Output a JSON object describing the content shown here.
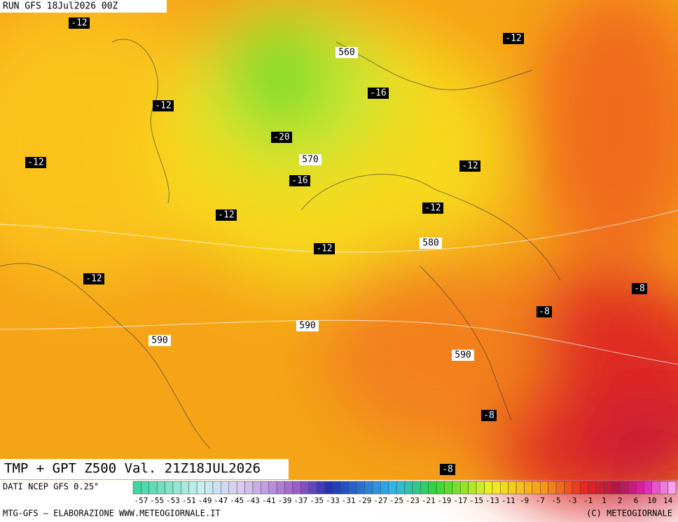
{
  "header": {
    "run": "RUN GFS 18Jul2026 00Z"
  },
  "map": {
    "temp_labels": [
      -12,
      -12,
      -16,
      -12,
      -20,
      -12,
      -16,
      -12,
      -12,
      -12,
      -12,
      -12,
      -8,
      -8,
      -8,
      -8
    ],
    "height_labels": [
      560,
      570,
      580,
      590,
      590,
      590
    ]
  },
  "footer": {
    "title": "TMP + GPT Z500 Val. 21Z18JUL2026",
    "source": "DATI NCEP GFS 0.25°",
    "credit": "MTG-GFS – ELABORAZIONE WWW.METEOGIORNALE.IT",
    "copyright": "(C) METEOGIORNALE"
  },
  "colorbar": {
    "labels": [
      -57,
      -55,
      -53,
      -51,
      -49,
      -47,
      -45,
      -43,
      -41,
      -39,
      -37,
      -35,
      -33,
      -31,
      -29,
      -27,
      -25,
      -23,
      -21,
      -19,
      -17,
      -15,
      -13,
      -11,
      -9,
      -7,
      -5,
      -3,
      -1,
      1,
      2,
      6,
      10,
      14
    ]
  }
}
